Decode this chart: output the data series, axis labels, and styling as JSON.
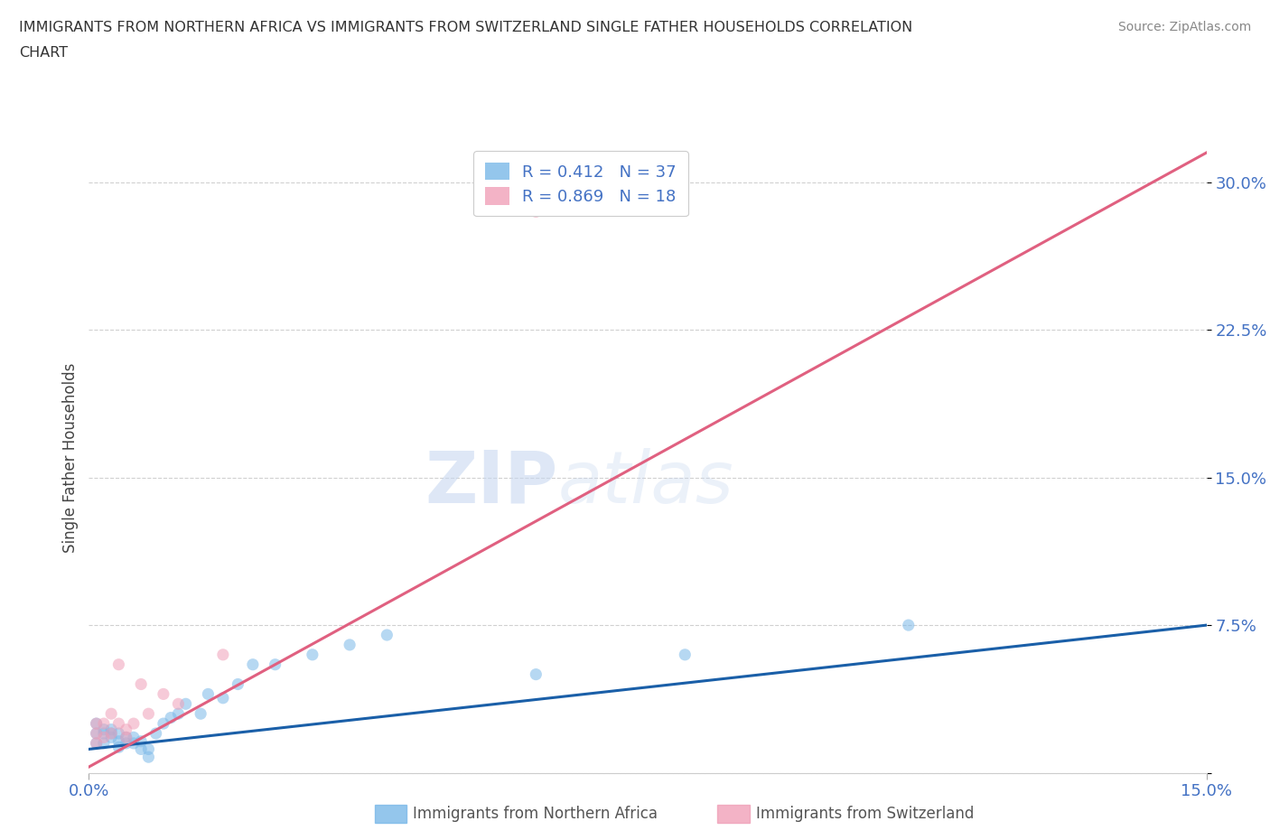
{
  "title_line1": "IMMIGRANTS FROM NORTHERN AFRICA VS IMMIGRANTS FROM SWITZERLAND SINGLE FATHER HOUSEHOLDS CORRELATION",
  "title_line2": "CHART",
  "source": "Source: ZipAtlas.com",
  "ylabel": "Single Father Households",
  "xlim": [
    0.0,
    0.15
  ],
  "ylim": [
    0.0,
    0.32
  ],
  "yticks": [
    0.0,
    0.075,
    0.15,
    0.225,
    0.3
  ],
  "ytick_labels": [
    "",
    "7.5%",
    "15.0%",
    "22.5%",
    "30.0%"
  ],
  "xtick_vals": [
    0.0,
    0.15
  ],
  "xtick_labels": [
    "0.0%",
    "15.0%"
  ],
  "watermark_part1": "ZIP",
  "watermark_part2": "atlas",
  "legend_entries": [
    {
      "label": "Immigrants from Northern Africa",
      "R": 0.412,
      "N": 37,
      "color": "#a8c8f0"
    },
    {
      "label": "Immigrants from Switzerland",
      "R": 0.869,
      "N": 18,
      "color": "#f4a0b0"
    }
  ],
  "blue_scatter_x": [
    0.001,
    0.001,
    0.001,
    0.002,
    0.002,
    0.002,
    0.003,
    0.003,
    0.003,
    0.004,
    0.004,
    0.004,
    0.005,
    0.005,
    0.006,
    0.006,
    0.007,
    0.007,
    0.008,
    0.008,
    0.009,
    0.01,
    0.011,
    0.012,
    0.013,
    0.015,
    0.016,
    0.018,
    0.02,
    0.022,
    0.025,
    0.03,
    0.035,
    0.04,
    0.06,
    0.08,
    0.11
  ],
  "blue_scatter_y": [
    0.015,
    0.02,
    0.025,
    0.015,
    0.02,
    0.022,
    0.018,
    0.02,
    0.022,
    0.013,
    0.016,
    0.02,
    0.015,
    0.018,
    0.015,
    0.018,
    0.012,
    0.016,
    0.008,
    0.012,
    0.02,
    0.025,
    0.028,
    0.03,
    0.035,
    0.03,
    0.04,
    0.038,
    0.045,
    0.055,
    0.055,
    0.06,
    0.065,
    0.07,
    0.05,
    0.06,
    0.075
  ],
  "pink_scatter_x": [
    0.001,
    0.001,
    0.001,
    0.002,
    0.002,
    0.003,
    0.003,
    0.004,
    0.004,
    0.005,
    0.005,
    0.006,
    0.007,
    0.008,
    0.01,
    0.012,
    0.018,
    0.06
  ],
  "pink_scatter_y": [
    0.015,
    0.02,
    0.025,
    0.018,
    0.025,
    0.02,
    0.03,
    0.025,
    0.055,
    0.018,
    0.022,
    0.025,
    0.045,
    0.03,
    0.04,
    0.035,
    0.06,
    0.285
  ],
  "blue_line_x": [
    0.0,
    0.15
  ],
  "blue_line_y": [
    0.012,
    0.075
  ],
  "pink_line_x": [
    0.0,
    0.15
  ],
  "pink_line_y": [
    0.003,
    0.315
  ],
  "bg_color": "#ffffff",
  "scatter_alpha": 0.55,
  "scatter_size": 90,
  "blue_color": "#7ab8e8",
  "pink_color": "#f0a0b8",
  "blue_line_color": "#1a5fa8",
  "pink_line_color": "#e06080",
  "grid_color": "#d0d0d0",
  "title_color": "#333333",
  "axis_color": "#4472c4",
  "watermark_color1": "#c8d8f0",
  "watermark_color2": "#c8d8f0"
}
